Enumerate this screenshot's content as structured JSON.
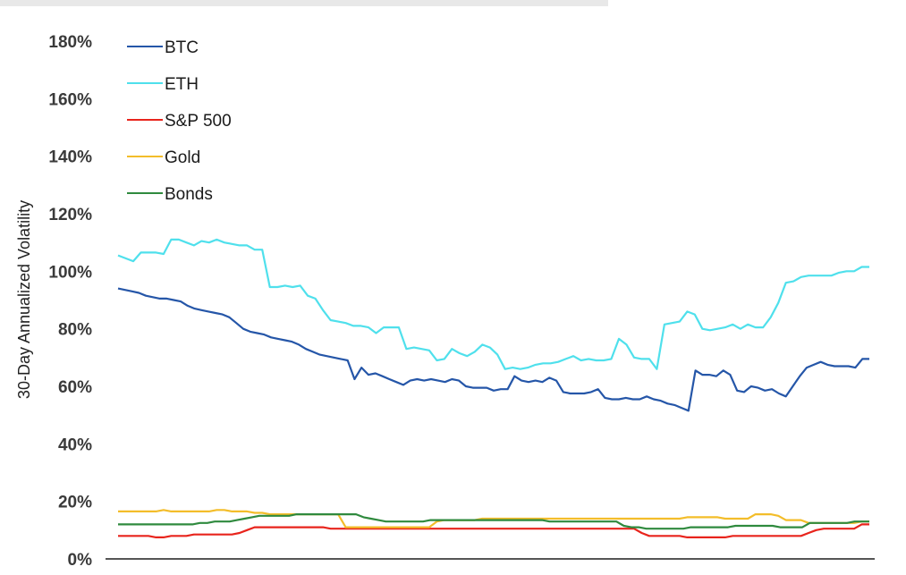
{
  "chart_data": {
    "type": "line",
    "title": "",
    "xlabel": "",
    "ylabel": "30-Day Annualized Volatility",
    "ylim": [
      0,
      180
    ],
    "y_ticks": [
      "0%",
      "20%",
      "40%",
      "60%",
      "80%",
      "100%",
      "120%",
      "140%",
      "160%",
      "180%"
    ],
    "legend_position": "top-left",
    "grid": false,
    "x_points": 100,
    "series": [
      {
        "name": "BTC",
        "color": "#2556a8",
        "values": [
          94,
          93.5,
          93,
          92.5,
          91.5,
          91,
          90.5,
          90.5,
          90,
          89.5,
          88,
          87,
          86.5,
          86,
          85.5,
          85,
          84,
          82,
          80,
          79,
          78.5,
          78,
          77,
          76.5,
          76,
          75.5,
          74.5,
          73,
          72,
          71,
          70.5,
          70,
          69.5,
          69,
          62.5,
          66.5,
          64,
          64.5,
          63.5,
          62.5,
          61.5,
          60.5,
          62,
          62.5,
          62,
          62.5,
          62,
          61.5,
          62.5,
          62,
          60,
          59.5,
          59.5,
          59.5,
          58.5,
          59,
          59,
          63.5,
          62,
          61.5,
          62,
          61.5,
          63,
          62,
          58,
          57.5,
          57.5,
          57.5,
          58,
          59,
          56,
          55.5,
          55.5,
          56,
          55.5,
          55.5,
          56.5,
          55.5,
          55,
          54,
          53.5,
          52.5,
          51.5,
          65.5,
          64,
          64,
          63.5,
          65.5,
          64,
          58.5,
          58,
          60,
          59.5,
          58.5,
          59,
          57.5,
          56.5,
          60,
          63.5,
          66.5,
          67.5,
          68.5,
          67.5,
          67,
          67,
          67,
          66.5,
          69.5,
          69.5
        ]
      },
      {
        "name": "ETH",
        "color": "#4fe0ec",
        "values": [
          105.5,
          104.5,
          103.5,
          106.5,
          106.5,
          106.5,
          106,
          111,
          111,
          110,
          109,
          110.5,
          110,
          111,
          110,
          109.5,
          109,
          109,
          107.5,
          107.5,
          94.5,
          94.5,
          95,
          94.5,
          95,
          91.5,
          90.5,
          86.5,
          83,
          82.5,
          82,
          81,
          81,
          80.5,
          78.5,
          80.5,
          80.5,
          80.5,
          73,
          73.5,
          73,
          72.5,
          69,
          69.5,
          73,
          71.5,
          70.5,
          72,
          74.5,
          73.5,
          71,
          66,
          66.5,
          66,
          66.5,
          67.5,
          68,
          68,
          68.5,
          69.5,
          70.5,
          69,
          69.5,
          69,
          69,
          69.5,
          76.5,
          74.5,
          70,
          69.5,
          69.5,
          66,
          81.5,
          82,
          82.5,
          86,
          85,
          80,
          79.5,
          80,
          80.5,
          81.5,
          80,
          81.5,
          80.5,
          80.5,
          84,
          89,
          96,
          96.5,
          98,
          98.5,
          98.5,
          98.5,
          98.5,
          99.5,
          100,
          100,
          101.5,
          101.5
        ]
      },
      {
        "name": "S&P 500",
        "color": "#e8241c",
        "values": [
          8,
          8,
          8,
          8,
          8,
          7.5,
          7.5,
          8,
          8,
          8,
          8.5,
          8.5,
          8.5,
          8.5,
          8.5,
          8.5,
          9,
          10,
          11,
          11,
          11,
          11,
          11,
          11,
          11,
          11,
          11,
          11,
          10.5,
          10.5,
          10.5,
          10.5,
          10.5,
          10.5,
          10.5,
          10.5,
          10.5,
          10.5,
          10.5,
          10.5,
          10.5,
          10.5,
          10.5,
          10.5,
          10.5,
          10.5,
          10.5,
          10.5,
          10.5,
          10.5,
          10.5,
          10.5,
          10.5,
          10.5,
          10.5,
          10.5,
          10.5,
          10.5,
          10.5,
          10.5,
          10.5,
          10.5,
          10.5,
          10.5,
          10.5,
          10.5,
          10.5,
          10.5,
          10.5,
          9,
          8,
          8,
          8,
          8,
          8,
          7.5,
          7.5,
          7.5,
          7.5,
          7.5,
          7.5,
          8,
          8,
          8,
          8,
          8,
          8,
          8,
          8,
          8,
          8,
          9,
          10,
          10.5,
          10.5,
          10.5,
          10.5,
          10.5,
          12,
          12
        ]
      },
      {
        "name": "Gold",
        "color": "#f3bd2a",
        "values": [
          16.5,
          16.5,
          16.5,
          16.5,
          16.5,
          16.5,
          17,
          16.5,
          16.5,
          16.5,
          16.5,
          16.5,
          16.5,
          17,
          17,
          16.5,
          16.5,
          16.5,
          16,
          16,
          15.5,
          15.5,
          15.5,
          15.5,
          15.5,
          15.5,
          15.5,
          15.5,
          15.5,
          15.5,
          11,
          11,
          11,
          11,
          11,
          11,
          11,
          11,
          11,
          11,
          11,
          11,
          13,
          13.5,
          13.5,
          13.5,
          13.5,
          13.5,
          14,
          14,
          14,
          14,
          14,
          14,
          14,
          14,
          14,
          14,
          14,
          14,
          14,
          14,
          14,
          14,
          14,
          14,
          14,
          14,
          14,
          14,
          14,
          14,
          14,
          14,
          14,
          14.5,
          14.5,
          14.5,
          14.5,
          14.5,
          14,
          14,
          14,
          14,
          15.5,
          15.5,
          15.5,
          15,
          13.5,
          13.5,
          13.5,
          12.5,
          12.5,
          12.5,
          12.5,
          12.5,
          12.5,
          12.5,
          13,
          13
        ]
      },
      {
        "name": "Bonds",
        "color": "#2f8a3e",
        "values": [
          12,
          12,
          12,
          12,
          12,
          12,
          12,
          12,
          12,
          12,
          12,
          12.5,
          12.5,
          13,
          13,
          13,
          13.5,
          14,
          14.5,
          15,
          15,
          15,
          15,
          15,
          15.5,
          15.5,
          15.5,
          15.5,
          15.5,
          15.5,
          15.5,
          15.5,
          15.5,
          14.5,
          14,
          13.5,
          13,
          13,
          13,
          13,
          13,
          13,
          13.5,
          13.5,
          13.5,
          13.5,
          13.5,
          13.5,
          13.5,
          13.5,
          13.5,
          13.5,
          13.5,
          13.5,
          13.5,
          13.5,
          13.5,
          13.5,
          13,
          13,
          13,
          13,
          13,
          13,
          13,
          13,
          13,
          13,
          11.5,
          11,
          11,
          10.5,
          10.5,
          10.5,
          10.5,
          10.5,
          10.5,
          11,
          11,
          11,
          11,
          11,
          11,
          11.5,
          11.5,
          11.5,
          11.5,
          11.5,
          11.5,
          11,
          11,
          11,
          11,
          12.5,
          12.5,
          12.5,
          12.5,
          12.5,
          12.5,
          13,
          13,
          13
        ]
      }
    ]
  }
}
